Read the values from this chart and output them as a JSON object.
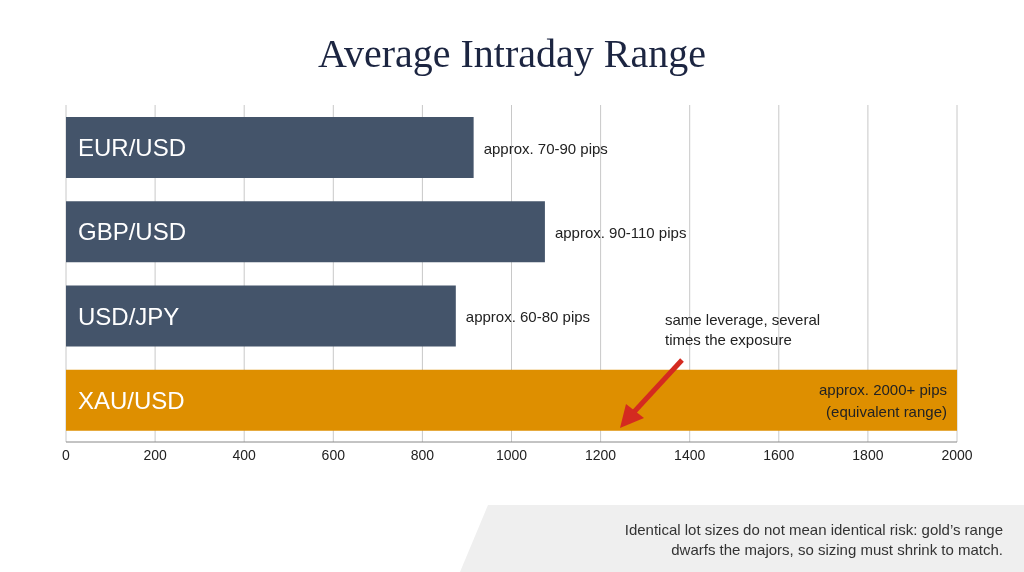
{
  "chart_data": {
    "type": "bar",
    "orientation": "horizontal",
    "title": "Average Intraday Range",
    "categories": [
      "EUR/USD",
      "GBP/USD",
      "USD/JPY",
      "XAU/USD"
    ],
    "values": [
      915,
      1075,
      875,
      2000
    ],
    "colors": [
      "#44546a",
      "#44546a",
      "#44546a",
      "#de8f00"
    ],
    "value_labels": [
      "approx. 70-90 pips",
      "approx. 90-110 pips",
      "approx. 60-80 pips",
      "approx. 2000+ pips\n(equivalent range)"
    ],
    "xlim": [
      0,
      2000
    ],
    "xticks": [
      0,
      200,
      400,
      600,
      800,
      1000,
      1200,
      1400,
      1600,
      1800,
      2000
    ],
    "grid": "x",
    "annotations": [
      "same leverage, several times the exposure",
      "Identical lot sizes do not mean identical risk: gold’s range dwarfs the majors, so sizing must shrink to match."
    ]
  }
}
